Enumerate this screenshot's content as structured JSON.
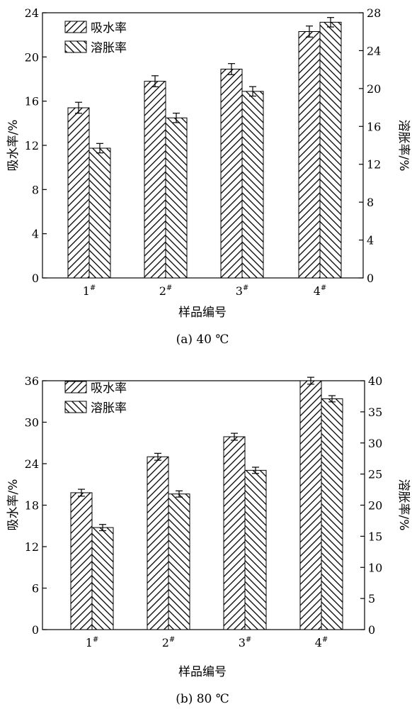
{
  "chart_data": [
    {
      "type": "bar",
      "caption": "(a) 40 ℃",
      "xlabel": "样品编号",
      "ylabel": "吸水率/%",
      "ylabel_right": "溶胀率/%",
      "categories": [
        "1#",
        "2#",
        "3#",
        "4#"
      ],
      "category_base": [
        "1",
        "2",
        "3",
        "4"
      ],
      "category_sup": "#",
      "ylim": [
        0,
        24
      ],
      "yticks": [
        0,
        4,
        8,
        12,
        16,
        20,
        24
      ],
      "y2lim": [
        0,
        28
      ],
      "y2ticks": [
        0,
        4,
        8,
        12,
        16,
        20,
        24,
        28
      ],
      "legend_position": "top-left",
      "grid": false,
      "series": [
        {
          "name": "吸水率",
          "axis": "left",
          "pattern": "hatch-forward",
          "values": [
            15.4,
            17.8,
            18.9,
            22.3
          ],
          "errors": [
            0.5,
            0.5,
            0.5,
            0.5
          ]
        },
        {
          "name": "溶胀率",
          "axis": "right",
          "pattern": "hatch-backward",
          "values": [
            13.7,
            16.9,
            19.7,
            27.0
          ],
          "errors": [
            0.5,
            0.5,
            0.5,
            0.5
          ]
        }
      ]
    },
    {
      "type": "bar",
      "caption": "(b) 80 ℃",
      "xlabel": "样品编号",
      "ylabel": "吸水率/%",
      "ylabel_right": "溶胀率/%",
      "categories": [
        "1#",
        "2#",
        "3#",
        "4#"
      ],
      "category_base": [
        "1",
        "2",
        "3",
        "4"
      ],
      "category_sup": "#",
      "ylim": [
        0,
        36
      ],
      "yticks": [
        0,
        6,
        12,
        18,
        24,
        30,
        36
      ],
      "y2lim": [
        0,
        40
      ],
      "y2ticks": [
        0,
        5,
        10,
        15,
        20,
        25,
        30,
        35,
        40
      ],
      "legend_position": "top-left",
      "grid": false,
      "series": [
        {
          "name": "吸水率",
          "axis": "left",
          "pattern": "hatch-forward",
          "values": [
            19.8,
            25.0,
            27.9,
            36.0
          ],
          "errors": [
            0.5,
            0.5,
            0.5,
            0.5
          ]
        },
        {
          "name": "溶胀率",
          "axis": "right",
          "pattern": "hatch-backward",
          "values": [
            16.4,
            21.8,
            25.6,
            37.1
          ],
          "errors": [
            0.5,
            0.5,
            0.5,
            0.5
          ]
        }
      ]
    }
  ]
}
